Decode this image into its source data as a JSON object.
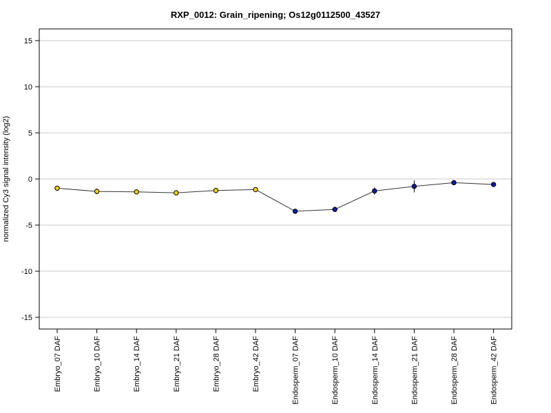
{
  "chart_data": {
    "type": "line",
    "title": "RXP_0012: Grain_ripening; Os12g0112500_43527",
    "xlabel": "",
    "ylabel": "normalized Cy3 signal intensity (log2)",
    "ylim": [
      -16,
      16
    ],
    "yticks": [
      -15,
      -10,
      -5,
      0,
      5,
      10,
      15
    ],
    "grid": true,
    "categories": [
      "Embryo_07 DAF",
      "Embryo_10 DAF",
      "Embryo_14 DAF",
      "Embryo_21 DAF",
      "Embryo_28 DAF",
      "Embryo_42 DAF",
      "Endosperm_07 DAF",
      "Endosperm_10 DAF",
      "Endosperm_14 DAF",
      "Endosperm_21 DAF",
      "Endosperm_28 DAF",
      "Endosperm_42 DAF"
    ],
    "series": [
      {
        "values": [
          -1.0,
          -1.35,
          -1.4,
          -1.5,
          -1.25,
          -1.15,
          -3.5,
          -3.3,
          -1.3,
          -0.8,
          -0.4,
          -0.6
        ],
        "errors": [
          0.1,
          0.3,
          0.1,
          0.1,
          0.1,
          0.1,
          0.1,
          0.25,
          0.4,
          0.65,
          0.1,
          0.1
        ],
        "point_colors": [
          "#f2cf1d",
          "#f2cf1d",
          "#f2cf1d",
          "#f2cf1d",
          "#f2cf1d",
          "#f2cf1d",
          "#0b1fa8",
          "#0b1fa8",
          "#0b1fa8",
          "#0b1fa8",
          "#0b1fa8",
          "#0b1fa8"
        ]
      }
    ],
    "colors": {
      "embryo": "#f2cf1d",
      "endosperm": "#0b1fa8",
      "line": "#333333",
      "grid": "#c8c8c8"
    }
  }
}
